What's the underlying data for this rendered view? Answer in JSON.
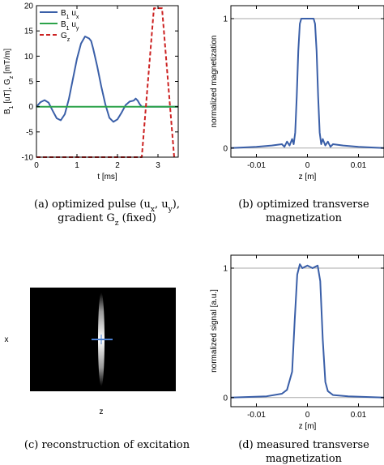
{
  "chart_data": [
    {
      "type": "line",
      "id": "a",
      "ylabel_parts": [
        "B",
        "1",
        " [uT], G",
        "z",
        " [mT/m]"
      ],
      "xlabel": "t [ms]",
      "xlim": [
        0,
        3.5
      ],
      "ylim": [
        -10,
        20
      ],
      "xticks": [
        0,
        1,
        2,
        3
      ],
      "yticks": [
        -10,
        -5,
        0,
        5,
        10,
        15,
        20
      ],
      "caption": [
        "(a) optimized pulse (u",
        "x",
        ", u",
        "y",
        "),",
        "gradient G",
        "z",
        " (fixed)"
      ],
      "legend": [
        {
          "parts": [
            "B",
            "1",
            " u",
            "x"
          ],
          "color": "#3a5fa8",
          "dash": "solid"
        },
        {
          "parts": [
            "B",
            "1",
            " u",
            "y"
          ],
          "color": "#2ca34a",
          "dash": "solid"
        },
        {
          "parts": [
            "G",
            "z"
          ],
          "color": "#cc2222",
          "dash": "dashed"
        }
      ],
      "series": [
        {
          "name": "B1 ux",
          "color": "#3a5fa8",
          "x": [
            0,
            0.1,
            0.2,
            0.3,
            0.4,
            0.5,
            0.6,
            0.7,
            0.8,
            0.9,
            1.0,
            1.1,
            1.2,
            1.3,
            1.35,
            1.4,
            1.5,
            1.6,
            1.7,
            1.8,
            1.9,
            2.0,
            2.1,
            2.2,
            2.3,
            2.4,
            2.45,
            2.5,
            2.55,
            2.6,
            3.5
          ],
          "y": [
            0,
            0.9,
            1.3,
            0.8,
            -0.8,
            -2.3,
            -2.7,
            -1.5,
            1.5,
            5.5,
            9.5,
            12.5,
            13.9,
            13.5,
            13.0,
            11.5,
            8.0,
            4.0,
            0.5,
            -2.2,
            -3.0,
            -2.5,
            -1.2,
            0.3,
            1.0,
            1.2,
            1.6,
            1.2,
            0.5,
            0,
            0
          ]
        },
        {
          "name": "B1 uy",
          "color": "#2ca34a",
          "x": [
            0,
            3.5
          ],
          "y": [
            0,
            0
          ]
        },
        {
          "name": "Gz",
          "color": "#cc2222",
          "x": [
            0,
            2.6,
            2.9,
            3.1,
            3.4
          ],
          "y": [
            -10,
            -10,
            19.5,
            19.5,
            -10
          ]
        }
      ]
    },
    {
      "type": "line",
      "id": "b",
      "ylabel": "normalized magnetization",
      "xlabel": "z [m]",
      "xlim": [
        -0.015,
        0.015
      ],
      "ylim": [
        -0.07,
        1.1
      ],
      "xticks": [
        -0.01,
        0,
        0.01
      ],
      "xtick_labels": [
        "-0.01",
        "0",
        "0.01"
      ],
      "yticks": [
        0,
        1
      ],
      "hlines": [
        0,
        1
      ],
      "caption": [
        "(b) optimized transverse",
        "magnetization"
      ],
      "series": [
        {
          "name": "",
          "color": "#3a5fa8",
          "x": [
            -0.015,
            -0.01,
            -0.007,
            -0.005,
            -0.0045,
            -0.004,
            -0.0035,
            -0.003,
            -0.0027,
            -0.0024,
            -0.0021,
            -0.0018,
            -0.0015,
            -0.0012,
            0.0012,
            0.0015,
            0.0018,
            0.0021,
            0.0024,
            0.0027,
            0.003,
            0.0035,
            0.004,
            0.0045,
            0.005,
            0.007,
            0.01,
            0.015
          ],
          "y": [
            0.0,
            0.01,
            0.02,
            0.03,
            0.01,
            0.05,
            0.02,
            0.07,
            0.03,
            0.12,
            0.4,
            0.75,
            0.96,
            1.0,
            1.0,
            0.96,
            0.75,
            0.4,
            0.12,
            0.03,
            0.07,
            0.02,
            0.05,
            0.01,
            0.03,
            0.02,
            0.01,
            0.0
          ]
        }
      ]
    },
    {
      "type": "heatmap",
      "id": "c",
      "xlabel": "z",
      "ylabel": "x",
      "caption": [
        "(c) reconstruction of excitation"
      ],
      "background": "#000000",
      "marker_color": "#4a7fd0"
    },
    {
      "type": "line",
      "id": "d",
      "ylabel": "normalized signal [a.u.]",
      "xlabel": "z [m]",
      "xlim": [
        -0.015,
        0.015
      ],
      "ylim": [
        -0.07,
        1.1
      ],
      "xticks": [
        -0.01,
        0,
        0.01
      ],
      "xtick_labels": [
        "-0.01",
        "0",
        "0.01"
      ],
      "yticks": [
        0,
        1
      ],
      "hlines": [
        0,
        1
      ],
      "caption": [
        "(d) measured transverse",
        "magnetization"
      ],
      "series": [
        {
          "name": "",
          "color": "#3a5fa8",
          "x": [
            -0.015,
            -0.008,
            -0.005,
            -0.004,
            -0.003,
            -0.0025,
            -0.002,
            -0.0015,
            -0.001,
            0.0,
            0.001,
            0.002,
            0.0025,
            0.003,
            0.0035,
            0.004,
            0.005,
            0.008,
            0.015
          ],
          "y": [
            0.0,
            0.01,
            0.03,
            0.06,
            0.2,
            0.6,
            0.95,
            1.03,
            1.0,
            1.02,
            1.0,
            1.02,
            0.9,
            0.45,
            0.12,
            0.05,
            0.02,
            0.01,
            0.0
          ]
        }
      ]
    }
  ]
}
